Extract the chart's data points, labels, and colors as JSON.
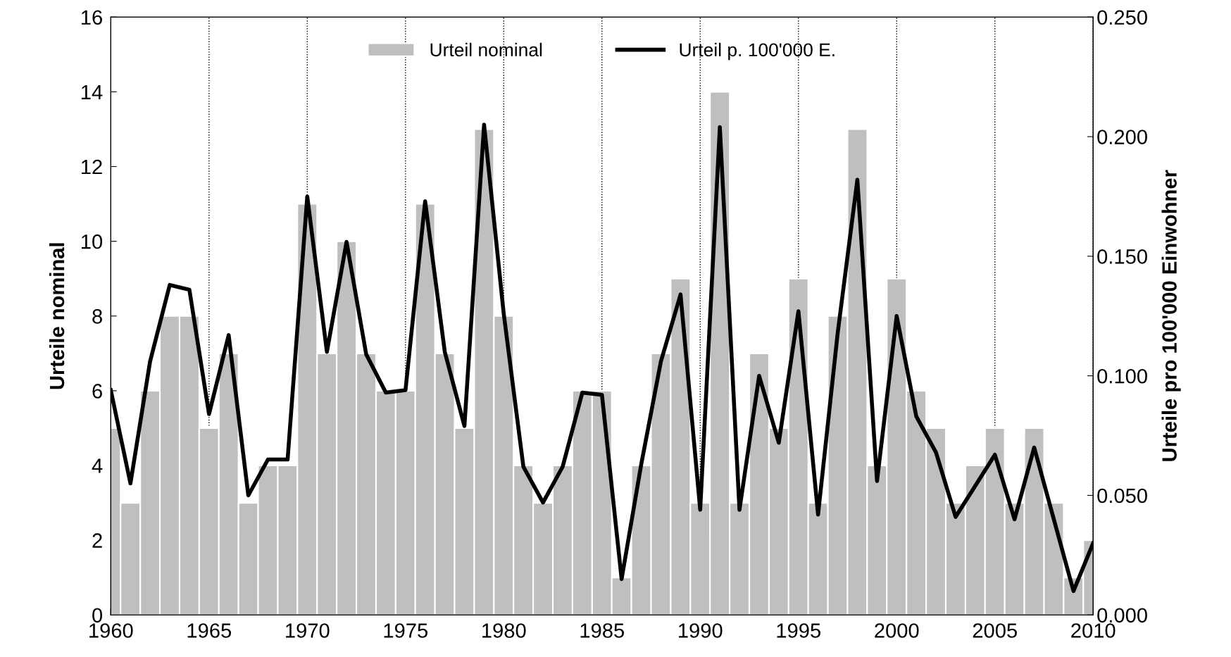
{
  "chart_data": {
    "type": "bar",
    "ylabel": "Urteile nominal",
    "y2label": "Urteile pro 100'000 Einwohner",
    "x": [
      1960,
      1961,
      1962,
      1963,
      1964,
      1965,
      1966,
      1967,
      1968,
      1969,
      1970,
      1971,
      1972,
      1973,
      1974,
      1975,
      1976,
      1977,
      1978,
      1979,
      1980,
      1981,
      1982,
      1983,
      1984,
      1985,
      1986,
      1987,
      1988,
      1989,
      1990,
      1991,
      1992,
      1993,
      1994,
      1995,
      1996,
      1997,
      1998,
      1999,
      2000,
      2001,
      2002,
      2003,
      2004,
      2005,
      2006,
      2007,
      2008,
      2009,
      2010
    ],
    "series": [
      {
        "name": "Urteil nominal",
        "color": "#bfbfbf",
        "values": [
          5,
          3,
          6,
          8,
          8,
          5,
          7,
          3,
          4,
          4,
          11,
          7,
          10,
          7,
          6,
          6,
          11,
          7,
          5,
          13,
          8,
          4,
          3,
          4,
          6,
          6,
          1,
          4,
          7,
          9,
          3,
          14,
          3,
          7,
          5,
          9,
          3,
          8,
          13,
          4,
          9,
          6,
          5,
          3,
          4,
          5,
          3,
          5,
          3,
          1,
          2
        ]
      },
      {
        "name": "Urteil p. 100'000 E.",
        "type": "line",
        "axis": "y2",
        "color": "#000000",
        "values": [
          0.094,
          0.055,
          0.106,
          0.138,
          0.136,
          0.084,
          0.117,
          0.05,
          0.065,
          0.065,
          0.175,
          0.11,
          0.156,
          0.109,
          0.093,
          0.094,
          0.173,
          0.11,
          0.079,
          0.205,
          0.126,
          0.062,
          0.047,
          0.062,
          0.093,
          0.092,
          0.015,
          0.063,
          0.106,
          0.134,
          0.044,
          0.204,
          0.044,
          0.1,
          0.072,
          0.127,
          0.042,
          0.118,
          0.182,
          0.056,
          0.125,
          0.083,
          0.068,
          0.041,
          0.054,
          0.067,
          0.04,
          0.07,
          0.04,
          0.01,
          0.03
        ]
      }
    ],
    "xlim": [
      1960,
      2010
    ],
    "xticks": [
      1960,
      1965,
      1970,
      1975,
      1980,
      1985,
      1990,
      1995,
      2000,
      2005,
      2010
    ],
    "ylim": [
      0,
      16
    ],
    "yticks": [
      0,
      2,
      4,
      6,
      8,
      10,
      12,
      14,
      16
    ],
    "y2lim": [
      0,
      0.25
    ],
    "y2ticks": [
      {
        "value": 0,
        "label": "0.000"
      },
      {
        "value": 0.05,
        "label": "0.050"
      },
      {
        "value": 0.1,
        "label": "0.100"
      },
      {
        "value": 0.15,
        "label": "0.150"
      },
      {
        "value": 0.2,
        "label": "0.200"
      },
      {
        "value": 0.25,
        "label": "0.250"
      }
    ],
    "grid": "x",
    "legend": "top",
    "line_style": "solid",
    "marker": "none"
  }
}
